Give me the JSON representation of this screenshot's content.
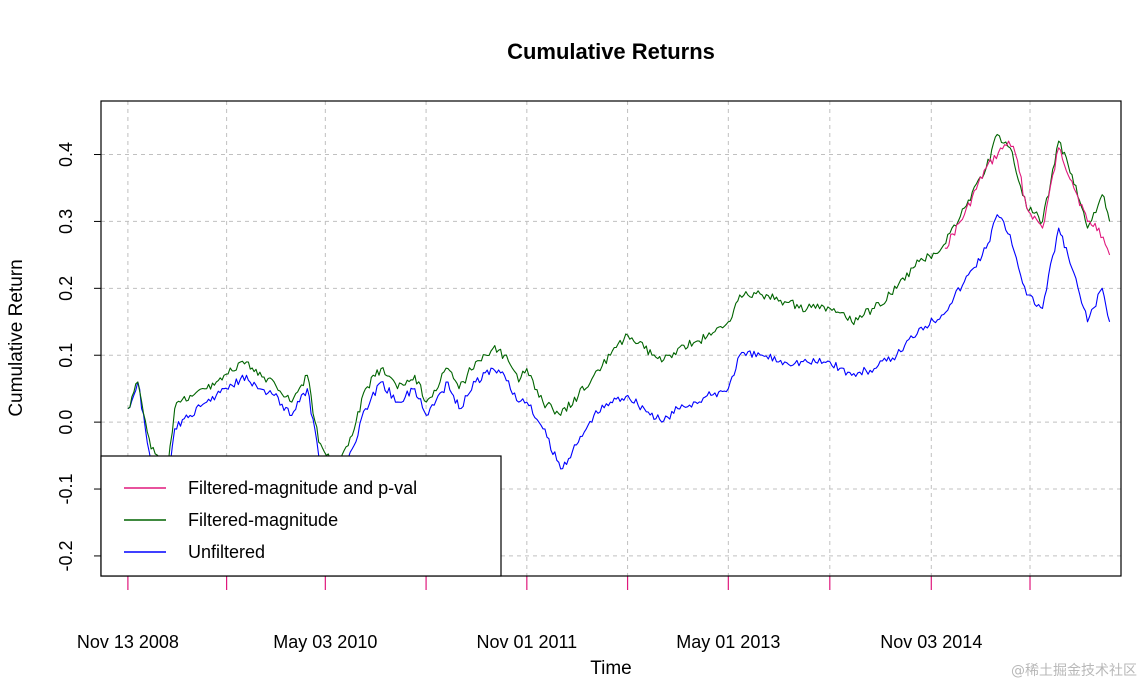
{
  "chart_data": {
    "type": "line",
    "title": "Cumulative Returns",
    "xlabel": "Time",
    "ylabel": "Cumulative Return",
    "x_ticks": [
      {
        "date": "2008-11-13",
        "label": "Nov 13 2008"
      },
      {
        "date": "2010-05-03",
        "label": "May 03 2010"
      },
      {
        "date": "2011-11-01",
        "label": "Nov 01 2011"
      },
      {
        "date": "2013-05-01",
        "label": "May 01 2013"
      },
      {
        "date": "2014-11-03",
        "label": "Nov 03 2014"
      }
    ],
    "x_range": [
      "2008-09-01",
      "2016-04-01"
    ],
    "y_ticks": [
      -0.2,
      -0.1,
      0.0,
      0.1,
      0.2,
      0.3,
      0.4
    ],
    "ylim": [
      -0.23,
      0.48
    ],
    "grid": true,
    "legend_position": "bottom-left",
    "series": [
      {
        "name": "Filtered-magnitude and p-val",
        "color": "#e0197d",
        "x": [
          "2014-12-10",
          "2015-02-01",
          "2015-04-01",
          "2015-06-01",
          "2015-06-20",
          "2015-07-20",
          "2015-09-01",
          "2015-10-15",
          "2015-11-20",
          "2016-01-01",
          "2016-02-01",
          "2016-03-01"
        ],
        "y": [
          0.26,
          0.31,
          0.38,
          0.42,
          0.4,
          0.32,
          0.29,
          0.41,
          0.36,
          0.3,
          0.29,
          0.25
        ]
      },
      {
        "name": "Filtered-magnitude",
        "color": "#006400",
        "x": [
          "2008-11-13",
          "2008-12-10",
          "2009-01-15",
          "2009-03-01",
          "2009-03-20",
          "2009-05-01",
          "2009-06-15",
          "2009-08-01",
          "2009-10-01",
          "2009-11-01",
          "2009-12-15",
          "2010-02-01",
          "2010-03-15",
          "2010-04-15",
          "2010-06-01",
          "2010-07-15",
          "2010-08-20",
          "2010-10-01",
          "2010-11-15",
          "2011-01-01",
          "2011-02-01",
          "2011-04-01",
          "2011-05-01",
          "2011-06-15",
          "2011-08-01",
          "2011-09-01",
          "2011-10-10",
          "2011-11-01",
          "2011-12-15",
          "2012-02-01",
          "2012-03-20",
          "2012-05-01",
          "2012-06-15",
          "2012-08-01",
          "2012-09-15",
          "2012-11-01",
          "2012-12-15",
          "2013-02-01",
          "2013-03-15",
          "2013-05-01",
          "2013-06-01",
          "2013-08-01",
          "2013-10-01",
          "2013-12-01",
          "2014-02-01",
          "2014-04-01",
          "2014-06-01",
          "2014-08-01",
          "2014-10-01",
          "2014-12-01",
          "2015-02-01",
          "2015-04-01",
          "2015-05-01",
          "2015-06-05",
          "2015-07-20",
          "2015-09-01",
          "2015-10-15",
          "2015-11-20",
          "2016-01-01",
          "2016-02-10",
          "2016-03-01"
        ],
        "y": [
          0.02,
          0.06,
          -0.04,
          -0.07,
          0.02,
          0.04,
          0.05,
          0.07,
          0.09,
          0.07,
          0.06,
          0.03,
          0.07,
          -0.03,
          -0.07,
          -0.02,
          0.05,
          0.08,
          0.05,
          0.07,
          0.03,
          0.08,
          0.05,
          0.09,
          0.11,
          0.1,
          0.06,
          0.08,
          0.03,
          0.01,
          0.04,
          0.07,
          0.1,
          0.13,
          0.11,
          0.09,
          0.11,
          0.12,
          0.13,
          0.15,
          0.19,
          0.19,
          0.18,
          0.17,
          0.17,
          0.15,
          0.17,
          0.2,
          0.24,
          0.26,
          0.32,
          0.38,
          0.43,
          0.41,
          0.32,
          0.3,
          0.42,
          0.37,
          0.29,
          0.34,
          0.3
        ]
      },
      {
        "name": "Unfiltered",
        "color": "#0000ff",
        "x": [
          "2008-11-13",
          "2008-12-10",
          "2009-01-15",
          "2009-03-01",
          "2009-03-20",
          "2009-05-01",
          "2009-06-15",
          "2009-08-01",
          "2009-10-01",
          "2009-11-01",
          "2009-12-15",
          "2010-02-01",
          "2010-03-15",
          "2010-04-15",
          "2010-06-01",
          "2010-07-15",
          "2010-08-20",
          "2010-10-01",
          "2010-11-15",
          "2011-01-01",
          "2011-02-01",
          "2011-04-01",
          "2011-05-01",
          "2011-06-15",
          "2011-08-01",
          "2011-09-01",
          "2011-10-10",
          "2011-11-01",
          "2011-12-15",
          "2012-02-01",
          "2012-03-20",
          "2012-05-01",
          "2012-06-15",
          "2012-08-01",
          "2012-09-15",
          "2012-11-01",
          "2012-12-15",
          "2013-02-01",
          "2013-03-15",
          "2013-05-01",
          "2013-06-01",
          "2013-08-01",
          "2013-10-01",
          "2013-12-01",
          "2014-02-01",
          "2014-04-01",
          "2014-06-01",
          "2014-08-01",
          "2014-10-01",
          "2014-12-01",
          "2015-02-01",
          "2015-04-01",
          "2015-05-01",
          "2015-06-05",
          "2015-07-20",
          "2015-09-01",
          "2015-10-15",
          "2015-11-20",
          "2016-01-01",
          "2016-02-10",
          "2016-03-01"
        ],
        "y": [
          0.02,
          0.06,
          -0.06,
          -0.09,
          -0.01,
          0.01,
          0.03,
          0.05,
          0.07,
          0.05,
          0.04,
          0.01,
          0.05,
          -0.05,
          -0.09,
          -0.04,
          0.02,
          0.06,
          0.03,
          0.05,
          0.01,
          0.06,
          0.02,
          0.06,
          0.08,
          0.07,
          0.03,
          0.03,
          -0.01,
          -0.07,
          -0.03,
          0.01,
          0.03,
          0.04,
          0.02,
          0.0,
          0.02,
          0.03,
          0.04,
          0.05,
          0.1,
          0.1,
          0.09,
          0.09,
          0.09,
          0.07,
          0.08,
          0.1,
          0.14,
          0.16,
          0.21,
          0.26,
          0.31,
          0.28,
          0.19,
          0.17,
          0.29,
          0.23,
          0.15,
          0.2,
          0.15
        ]
      }
    ]
  },
  "watermark": "@稀土掘金技术社区"
}
